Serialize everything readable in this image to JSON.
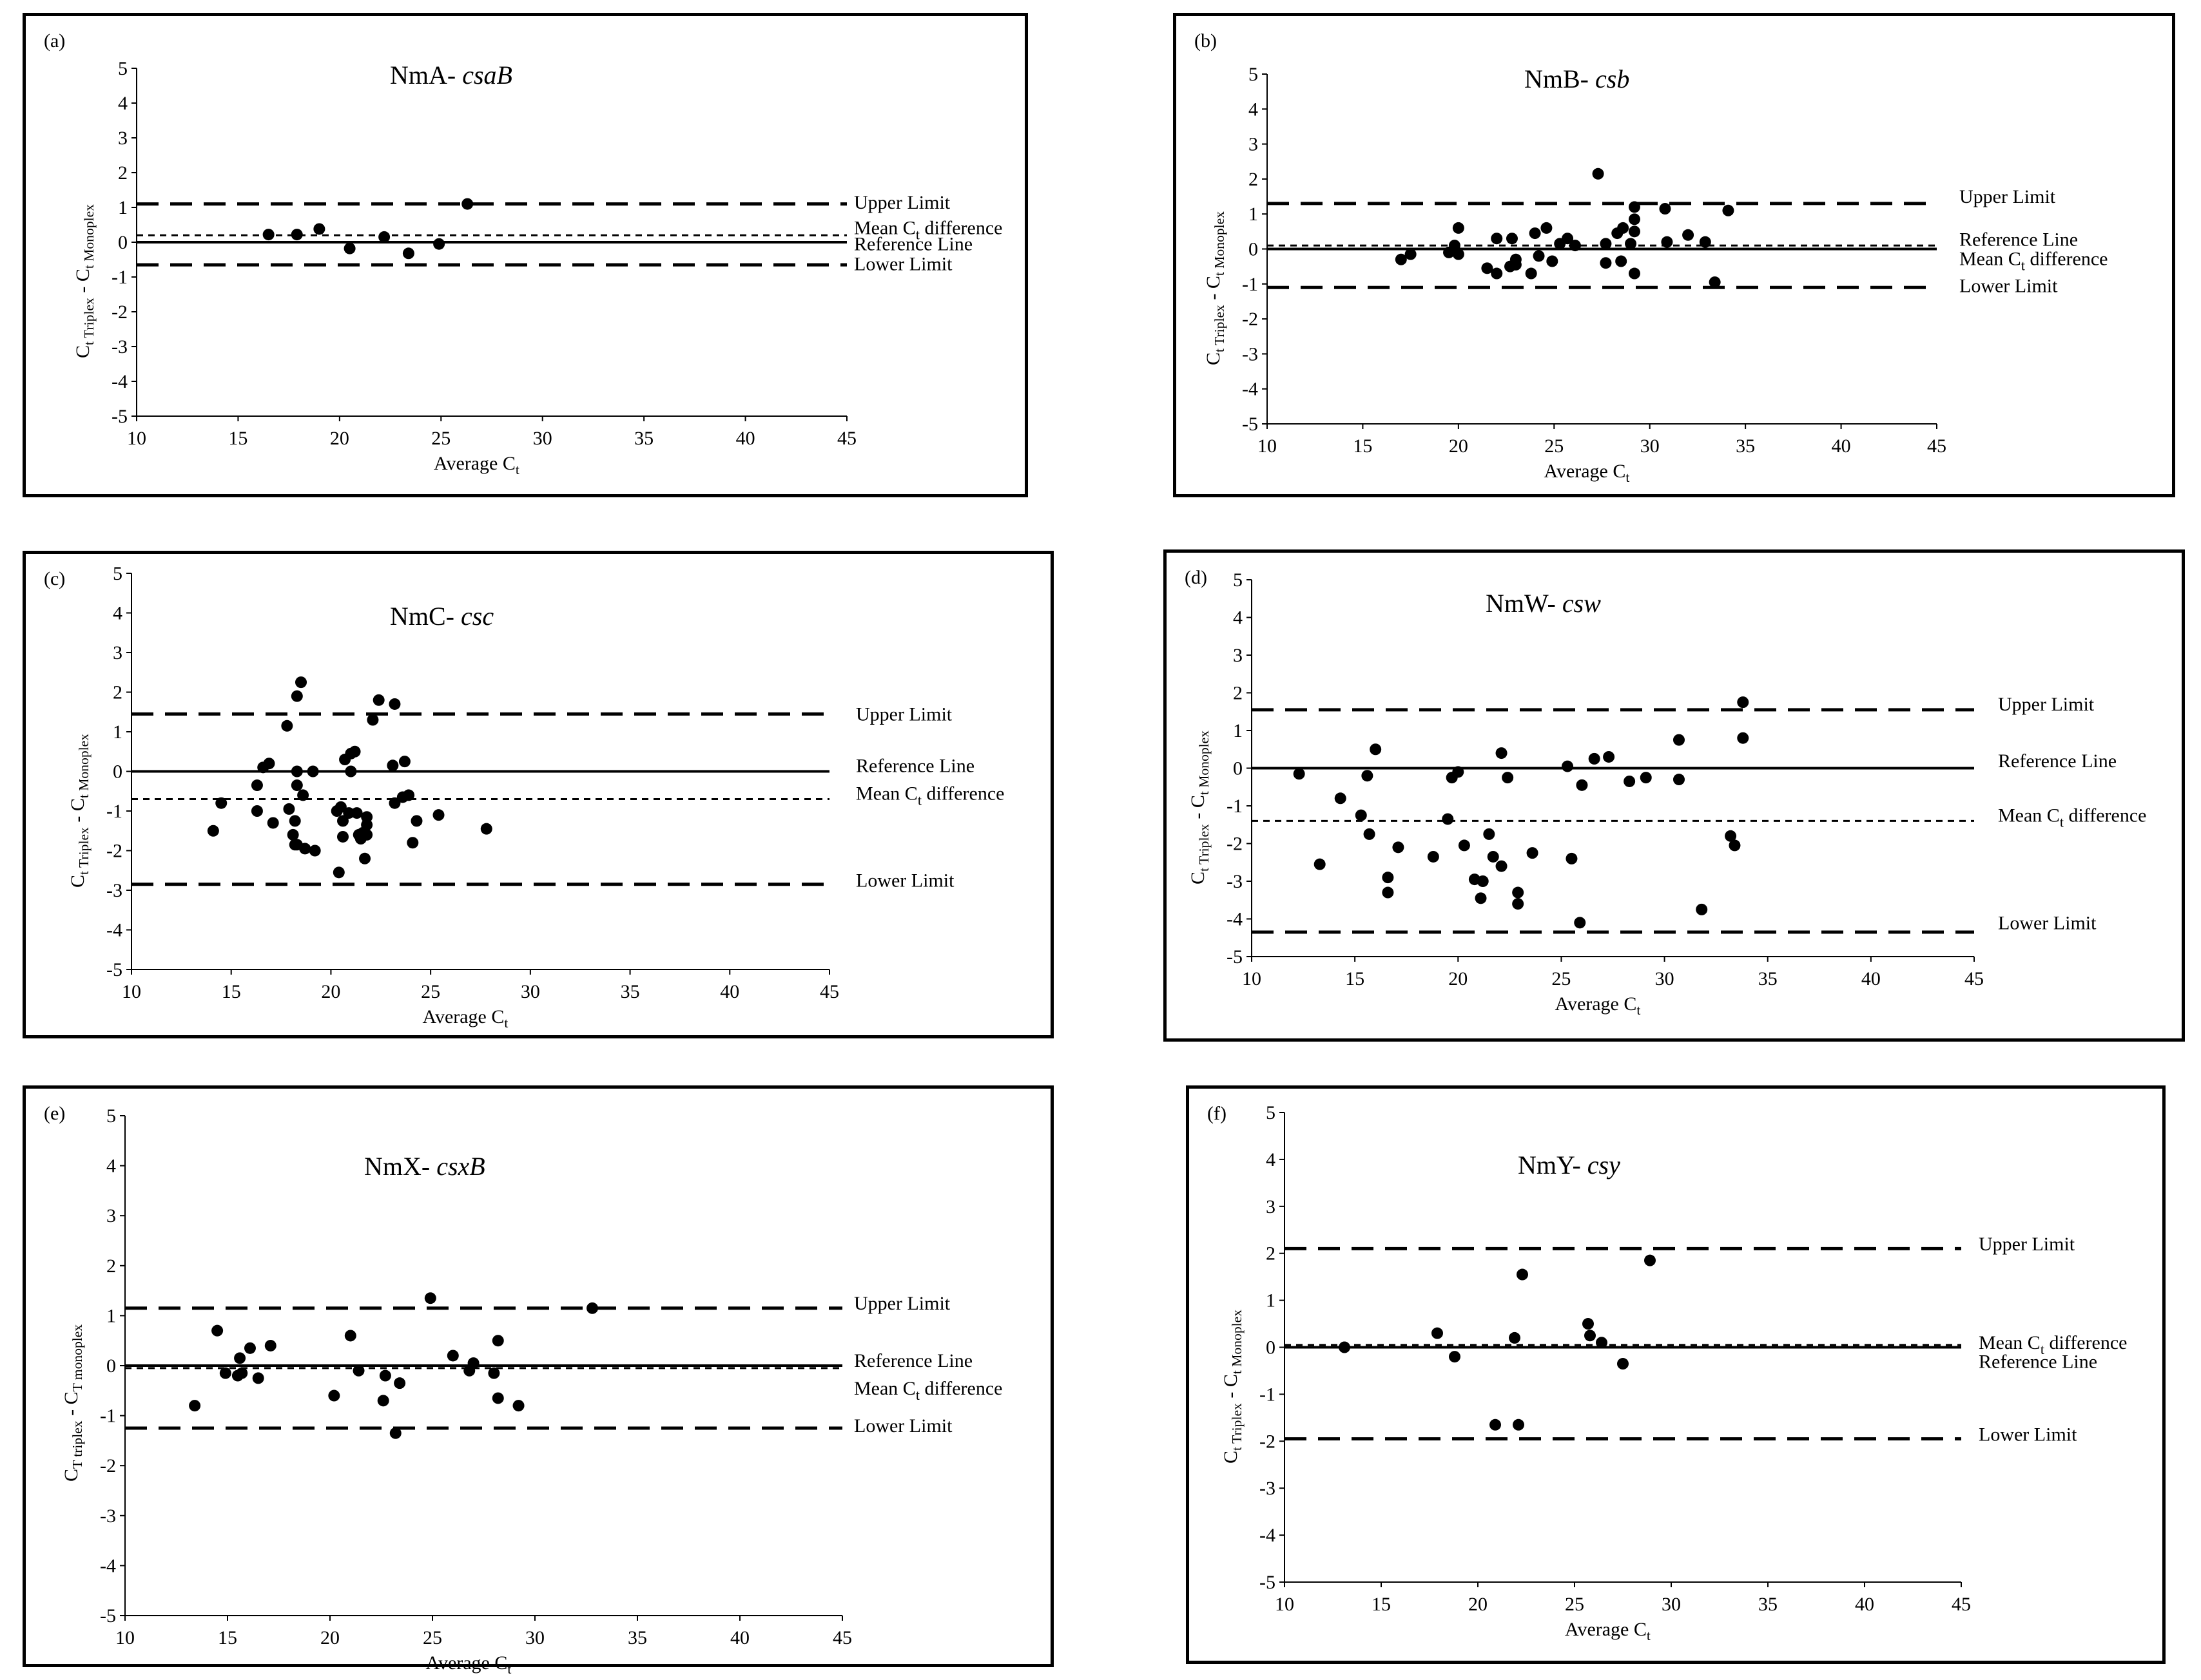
{
  "chart_data": [
    {
      "type": "scatter",
      "panel_label": "(a)",
      "title": {
        "prefix": "NmA- ",
        "gene": "csaB"
      },
      "xlabel": "Average",
      "xlabel_sub": "t",
      "ylabel": "C",
      "ylabel_sub1": "t Triplex",
      "ylabel_mid": " - C",
      "ylabel_sub2": "t Monoplex",
      "xlim": [
        10,
        45
      ],
      "ylim": [
        -5,
        5
      ],
      "xticks": [
        10,
        15,
        20,
        25,
        30,
        35,
        40,
        45
      ],
      "yticks": [
        -5,
        -4,
        -3,
        -2,
        -1,
        0,
        1,
        2,
        3,
        4,
        5
      ],
      "lines": [
        {
          "name": "Upper Limit",
          "y": 1.1,
          "style": "long-dash"
        },
        {
          "name": "Mean Ct difference",
          "y": 0.2,
          "style": "short-dash"
        },
        {
          "name": "Reference Line",
          "y": 0,
          "style": "solid"
        },
        {
          "name": "Lower Limit",
          "y": -0.65,
          "style": "long-dash"
        }
      ],
      "line_labels": [
        {
          "text": "Upper Limit",
          "y": 1.15
        },
        {
          "text": "Mean Ct difference",
          "y": 0.42,
          "sub_after": "C"
        },
        {
          "text": "Reference Line",
          "y": -0.05
        },
        {
          "text": "Lower Limit",
          "y": -0.62
        }
      ],
      "points": [
        [
          16.5,
          0.22
        ],
        [
          17.9,
          0.22
        ],
        [
          19,
          0.38
        ],
        [
          20.5,
          -0.18
        ],
        [
          22.2,
          0.15
        ],
        [
          23.4,
          -0.32
        ],
        [
          24.9,
          -0.05
        ],
        [
          26.3,
          1.1
        ]
      ]
    },
    {
      "type": "scatter",
      "panel_label": "(b)",
      "title": {
        "prefix": "NmB- ",
        "gene": "csb"
      },
      "xlabel": "Average",
      "xlabel_sub": "t",
      "ylabel": "C",
      "ylabel_sub1": "t Triplex",
      "ylabel_mid": " - C",
      "ylabel_sub2": "t Monoplex",
      "xlim": [
        10,
        45
      ],
      "ylim": [
        -5,
        5
      ],
      "xticks": [
        10,
        15,
        20,
        25,
        30,
        35,
        40,
        45
      ],
      "yticks": [
        -5,
        -4,
        -3,
        -2,
        -1,
        0,
        1,
        2,
        3,
        4,
        5
      ],
      "lines": [
        {
          "name": "Upper Limit",
          "y": 1.3,
          "style": "long-dash"
        },
        {
          "name": "Mean Ct difference",
          "y": 0.1,
          "style": "short-dash"
        },
        {
          "name": "Reference Line",
          "y": 0,
          "style": "solid"
        },
        {
          "name": "Lower Limit",
          "y": -1.1,
          "style": "long-dash"
        }
      ],
      "line_labels": [
        {
          "text": "Upper Limit",
          "y": 1.5
        },
        {
          "text": "Reference Line",
          "y": 0.28
        },
        {
          "text": "Mean Ct difference",
          "y": -0.28,
          "sub_after": "C"
        },
        {
          "text": "Lower Limit",
          "y": -1.05
        }
      ],
      "points": [
        [
          17,
          -0.3
        ],
        [
          17.5,
          -0.15
        ],
        [
          19.5,
          -0.1
        ],
        [
          19.8,
          0.1
        ],
        [
          20,
          -0.15
        ],
        [
          20,
          0.6
        ],
        [
          21.5,
          -0.55
        ],
        [
          22,
          -0.7
        ],
        [
          22,
          0.3
        ],
        [
          22.7,
          -0.5
        ],
        [
          22.8,
          0.3
        ],
        [
          23,
          -0.3
        ],
        [
          23,
          -0.45
        ],
        [
          23.8,
          -0.7
        ],
        [
          24,
          0.45
        ],
        [
          24.2,
          -0.2
        ],
        [
          24.6,
          0.6
        ],
        [
          24.9,
          -0.35
        ],
        [
          25.3,
          0.15
        ],
        [
          25.7,
          0.3
        ],
        [
          26.1,
          0.1
        ],
        [
          27.3,
          2.15
        ],
        [
          27.7,
          0.15
        ],
        [
          27.7,
          -0.4
        ],
        [
          28.3,
          0.45
        ],
        [
          28.5,
          -0.35
        ],
        [
          28.6,
          0.6
        ],
        [
          29,
          0.15
        ],
        [
          29.2,
          0.5
        ],
        [
          29.2,
          0.85
        ],
        [
          29.2,
          1.2
        ],
        [
          29.2,
          -0.7
        ],
        [
          30.8,
          1.15
        ],
        [
          30.9,
          0.2
        ],
        [
          32,
          0.4
        ],
        [
          32.9,
          0.2
        ],
        [
          33.4,
          -0.95
        ],
        [
          34.1,
          1.1
        ]
      ]
    },
    {
      "type": "scatter",
      "panel_label": "(c)",
      "title": {
        "prefix": "NmC- ",
        "gene": "csc"
      },
      "xlabel": "Average",
      "xlabel_sub": "t",
      "ylabel": "C",
      "ylabel_sub1": "t Triplex",
      "ylabel_mid": " - C",
      "ylabel_sub2": "t Monoplex",
      "xlim": [
        10,
        45
      ],
      "ylim": [
        -5,
        5
      ],
      "xticks": [
        10,
        15,
        20,
        25,
        30,
        35,
        40,
        45
      ],
      "yticks": [
        -5,
        -4,
        -3,
        -2,
        -1,
        0,
        1,
        2,
        3,
        4,
        5
      ],
      "lines": [
        {
          "name": "Upper Limit",
          "y": 1.45,
          "style": "long-dash"
        },
        {
          "name": "Reference Line",
          "y": 0,
          "style": "solid"
        },
        {
          "name": "Mean Ct difference",
          "y": -0.7,
          "style": "short-dash"
        },
        {
          "name": "Lower Limit",
          "y": -2.85,
          "style": "long-dash"
        }
      ],
      "line_labels": [
        {
          "text": "Upper Limit",
          "y": 1.45
        },
        {
          "text": "Reference Line",
          "y": 0.15
        },
        {
          "text": "Mean Ct difference",
          "y": -0.55,
          "sub_after": "C"
        },
        {
          "text": "Lower Limit",
          "y": -2.75
        }
      ],
      "points": [
        [
          14.1,
          -1.5
        ],
        [
          14.5,
          -0.8
        ],
        [
          16.3,
          -0.35
        ],
        [
          16.3,
          -1
        ],
        [
          16.6,
          0.1
        ],
        [
          16.9,
          0.2
        ],
        [
          17.1,
          -1.3
        ],
        [
          17.8,
          1.15
        ],
        [
          17.9,
          -0.95
        ],
        [
          18.1,
          -1.6
        ],
        [
          18.2,
          -1.25
        ],
        [
          18.2,
          -1.85
        ],
        [
          18.3,
          -1.85
        ],
        [
          18.3,
          1.9
        ],
        [
          18.3,
          0
        ],
        [
          18.3,
          -0.35
        ],
        [
          18.5,
          2.25
        ],
        [
          18.6,
          -0.6
        ],
        [
          18.7,
          -1.95
        ],
        [
          19.1,
          0
        ],
        [
          19.2,
          -2.0
        ],
        [
          20.3,
          -1.0
        ],
        [
          20.4,
          -2.55
        ],
        [
          20.5,
          -0.9
        ],
        [
          20.6,
          -1.25
        ],
        [
          20.6,
          -1.65
        ],
        [
          20.7,
          0.3
        ],
        [
          20.9,
          -1.05
        ],
        [
          21,
          0.45
        ],
        [
          21,
          0
        ],
        [
          21.2,
          0.5
        ],
        [
          21.3,
          -1.05
        ],
        [
          21.4,
          -1.6
        ],
        [
          21.5,
          -1.7
        ],
        [
          21.6,
          -1.55
        ],
        [
          21.7,
          -2.2
        ],
        [
          21.8,
          -1.6
        ],
        [
          21.8,
          -1.15
        ],
        [
          21.8,
          -1.35
        ],
        [
          22.1,
          1.3
        ],
        [
          22.4,
          1.8
        ],
        [
          23.1,
          0.15
        ],
        [
          23.2,
          1.7
        ],
        [
          23.2,
          -0.8
        ],
        [
          23.6,
          -0.65
        ],
        [
          23.7,
          0.25
        ],
        [
          23.9,
          -0.6
        ],
        [
          24.1,
          -1.8
        ],
        [
          24.3,
          -1.25
        ],
        [
          25.4,
          -1.1
        ],
        [
          27.8,
          -1.45
        ]
      ]
    },
    {
      "type": "scatter",
      "panel_label": "(d)",
      "title": {
        "prefix": "NmW- ",
        "gene": "csw"
      },
      "xlabel": "Average",
      "xlabel_sub": "t",
      "ylabel": "C",
      "ylabel_sub1": "t Triplex",
      "ylabel_mid": " - C",
      "ylabel_sub2": "t Monoplex",
      "xlim": [
        10,
        45
      ],
      "ylim": [
        -5,
        5
      ],
      "xticks": [
        10,
        15,
        20,
        25,
        30,
        35,
        40,
        45
      ],
      "yticks": [
        -5,
        -4,
        -3,
        -2,
        -1,
        0,
        1,
        2,
        3,
        4,
        5
      ],
      "lines": [
        {
          "name": "Upper Limit",
          "y": 1.55,
          "style": "long-dash"
        },
        {
          "name": "Reference Line",
          "y": 0,
          "style": "solid"
        },
        {
          "name": "Mean Ct difference",
          "y": -1.4,
          "style": "short-dash"
        },
        {
          "name": "Lower Limit",
          "y": -4.35,
          "style": "long-dash"
        }
      ],
      "line_labels": [
        {
          "text": "Upper Limit",
          "y": 1.7
        },
        {
          "text": "Reference Line",
          "y": 0.2
        },
        {
          "text": "Mean Ct difference",
          "y": -1.25,
          "sub_after": "C"
        },
        {
          "text": "Lower Limit",
          "y": -4.1
        }
      ],
      "points": [
        [
          12.3,
          -0.15
        ],
        [
          13.3,
          -2.55
        ],
        [
          14.3,
          -0.8
        ],
        [
          15.3,
          -1.25
        ],
        [
          15.6,
          -0.2
        ],
        [
          15.7,
          -1.75
        ],
        [
          16,
          0.5
        ],
        [
          16.6,
          -2.9
        ],
        [
          16.6,
          -3.3
        ],
        [
          17.1,
          -2.1
        ],
        [
          18.8,
          -2.35
        ],
        [
          19.5,
          -1.35
        ],
        [
          19.7,
          -0.25
        ],
        [
          20,
          -0.1
        ],
        [
          20.3,
          -2.05
        ],
        [
          20.8,
          -2.95
        ],
        [
          21.1,
          -3.45
        ],
        [
          21.2,
          -3
        ],
        [
          21.5,
          -1.75
        ],
        [
          21.7,
          -2.35
        ],
        [
          22.1,
          -2.6
        ],
        [
          22.1,
          0.4
        ],
        [
          22.4,
          -0.25
        ],
        [
          22.9,
          -3.3
        ],
        [
          22.9,
          -3.6
        ],
        [
          23.6,
          -2.25
        ],
        [
          25.3,
          0.05
        ],
        [
          25.5,
          -2.4
        ],
        [
          25.9,
          -4.1
        ],
        [
          26,
          -0.45
        ],
        [
          26.6,
          0.25
        ],
        [
          27.3,
          0.3
        ],
        [
          28.3,
          -0.35
        ],
        [
          29.1,
          -0.25
        ],
        [
          30.7,
          -0.3
        ],
        [
          30.7,
          0.75
        ],
        [
          31.8,
          -3.75
        ],
        [
          33.2,
          -1.8
        ],
        [
          33.4,
          -2.05
        ],
        [
          33.8,
          1.75
        ],
        [
          33.8,
          0.8
        ]
      ]
    },
    {
      "type": "scatter",
      "panel_label": "(e)",
      "title": {
        "prefix": "NmX- ",
        "gene": "csxB"
      },
      "xlabel": "Average",
      "xlabel_sub": "t",
      "ylabel": "C",
      "ylabel_sub1": "T triplex",
      "ylabel_mid": " - C",
      "ylabel_sub2": "T monoplex",
      "xlim": [
        10,
        45
      ],
      "ylim": [
        -5,
        5
      ],
      "xticks": [
        10,
        15,
        20,
        25,
        30,
        35,
        40,
        45
      ],
      "yticks": [
        -5,
        -4,
        -3,
        -2,
        -1,
        0,
        1,
        2,
        3,
        4,
        5
      ],
      "lines": [
        {
          "name": "Upper Limit",
          "y": 1.15,
          "style": "long-dash"
        },
        {
          "name": "Reference Line",
          "y": 0,
          "style": "solid"
        },
        {
          "name": "Mean Ct difference",
          "y": -0.05,
          "style": "short-dash"
        },
        {
          "name": "Lower Limit",
          "y": -1.25,
          "style": "long-dash"
        }
      ],
      "line_labels": [
        {
          "text": "Upper Limit",
          "y": 1.25
        },
        {
          "text": "Reference Line",
          "y": 0.1
        },
        {
          "text": "Mean Ct difference",
          "y": -0.45,
          "sub_after": "C"
        },
        {
          "text": "Lower Limit",
          "y": -1.2
        }
      ],
      "points": [
        [
          13.4,
          -0.8
        ],
        [
          14.5,
          0.7
        ],
        [
          14.9,
          -0.15
        ],
        [
          15.5,
          -0.2
        ],
        [
          15.6,
          0.15
        ],
        [
          15.7,
          -0.15
        ],
        [
          16.1,
          0.35
        ],
        [
          16.5,
          -0.25
        ],
        [
          17.1,
          0.4
        ],
        [
          20.2,
          -0.6
        ],
        [
          21,
          0.6
        ],
        [
          21.4,
          -0.1
        ],
        [
          22.6,
          -0.7
        ],
        [
          22.7,
          -0.2
        ],
        [
          23.2,
          -1.35
        ],
        [
          23.4,
          -0.35
        ],
        [
          24.9,
          1.35
        ],
        [
          26,
          0.2
        ],
        [
          26.8,
          -0.1
        ],
        [
          27,
          0.05
        ],
        [
          28,
          -0.15
        ],
        [
          28.2,
          0.5
        ],
        [
          28.2,
          -0.65
        ],
        [
          29.2,
          -0.8
        ],
        [
          32.8,
          1.15
        ]
      ]
    },
    {
      "type": "scatter",
      "panel_label": "(f)",
      "title": {
        "prefix": "NmY- ",
        "gene": "csy"
      },
      "xlabel": "Average",
      "xlabel_sub": "t",
      "ylabel": "C",
      "ylabel_sub1": "t Triplex",
      "ylabel_mid": " - C",
      "ylabel_sub2": "t Monoplex",
      "xlim": [
        10,
        45
      ],
      "ylim": [
        -5,
        5
      ],
      "xticks": [
        10,
        15,
        20,
        25,
        30,
        35,
        40,
        45
      ],
      "yticks": [
        -5,
        -4,
        -3,
        -2,
        -1,
        0,
        1,
        2,
        3,
        4,
        5
      ],
      "lines": [
        {
          "name": "Upper Limit",
          "y": 2.1,
          "style": "long-dash"
        },
        {
          "name": "Mean Ct difference",
          "y": 0.05,
          "style": "short-dash"
        },
        {
          "name": "Reference Line",
          "y": 0,
          "style": "solid"
        },
        {
          "name": "Lower Limit",
          "y": -1.95,
          "style": "long-dash"
        }
      ],
      "line_labels": [
        {
          "text": "Upper Limit",
          "y": 2.2
        },
        {
          "text": "Mean Ct difference",
          "y": 0.1,
          "sub_after": "C"
        },
        {
          "text": "Reference Line",
          "y": -0.3
        },
        {
          "text": "Lower Limit",
          "y": -1.85
        }
      ],
      "points": [
        [
          13.1,
          0
        ],
        [
          17.9,
          0.3
        ],
        [
          18.8,
          -0.2
        ],
        [
          20.9,
          -1.65
        ],
        [
          21.9,
          0.2
        ],
        [
          22.1,
          -1.65
        ],
        [
          22.3,
          1.55
        ],
        [
          25.7,
          0.5
        ],
        [
          25.8,
          0.25
        ],
        [
          26.4,
          0.1
        ],
        [
          27.5,
          -0.35
        ],
        [
          28.9,
          1.85
        ]
      ]
    }
  ]
}
